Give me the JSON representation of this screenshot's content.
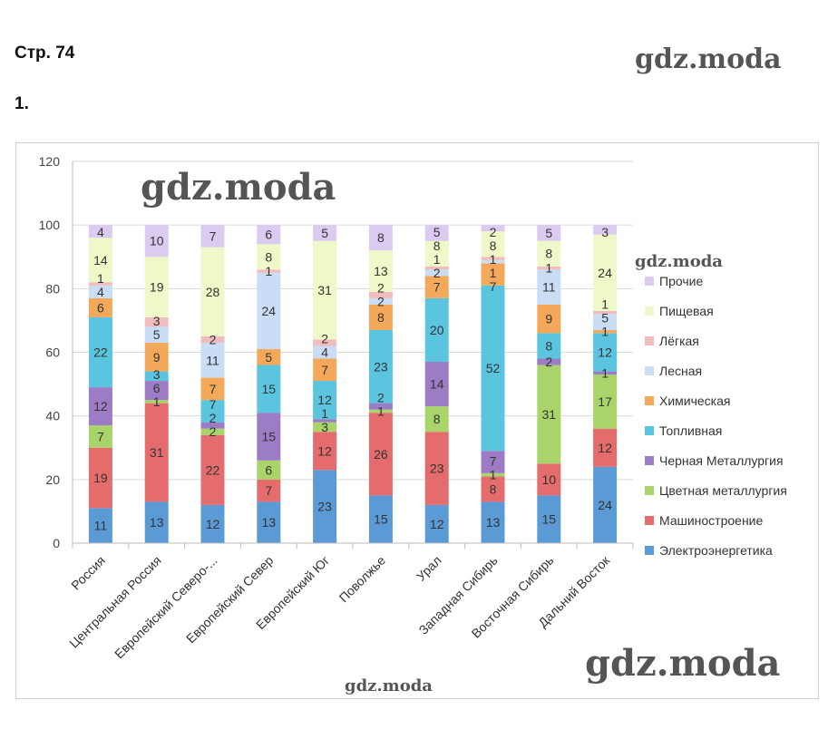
{
  "page": {
    "title": "Стр. 74",
    "task": "1.",
    "watermark": "gdz.moda"
  },
  "chart_data": {
    "type": "bar",
    "stacked": true,
    "categories": [
      "Россия",
      "Центральная Россия",
      "Европейский Северо-...",
      "Европейский Север",
      "Европейский Юг",
      "Поволжье",
      "Урал",
      "Западная Сибирь",
      "Восточная Сибирь",
      "Дальний Восток"
    ],
    "ylim": [
      0,
      120
    ],
    "yticks": [
      0,
      20,
      40,
      60,
      80,
      100,
      120
    ],
    "grid": true,
    "legend": "right",
    "series": [
      {
        "name": "Электроэнергетика",
        "color": "#5b9bd5",
        "values": [
          11,
          13,
          12,
          13,
          23,
          15,
          12,
          13,
          15,
          24
        ]
      },
      {
        "name": "Машиностроение",
        "color": "#e46c6c",
        "values": [
          19,
          31,
          22,
          7,
          12,
          26,
          23,
          8,
          10,
          12
        ]
      },
      {
        "name": "Цветная металлургия",
        "color": "#a9d46a",
        "values": [
          7,
          1,
          2,
          6,
          3,
          1,
          8,
          1,
          31,
          17
        ]
      },
      {
        "name": "Черная Металлургия",
        "color": "#9b7cc5",
        "values": [
          12,
          6,
          2,
          15,
          1,
          2,
          14,
          7,
          2,
          1
        ]
      },
      {
        "name": "Топливная",
        "color": "#5bc5e0",
        "values": [
          22,
          3,
          7,
          15,
          12,
          23,
          20,
          52,
          8,
          12
        ]
      },
      {
        "name": "Химическая",
        "color": "#f4a95a",
        "values": [
          6,
          9,
          7,
          5,
          7,
          8,
          7,
          7,
          9,
          1
        ]
      },
      {
        "name": "Лесная",
        "color": "#c9ddf5",
        "values": [
          4,
          5,
          11,
          24,
          4,
          2,
          2,
          1,
          11,
          5
        ]
      },
      {
        "name": "Лёгкая",
        "color": "#f0bcbc",
        "values": [
          1,
          3,
          2,
          1,
          2,
          2,
          1,
          1,
          1,
          1
        ]
      },
      {
        "name": "Пищевая",
        "color": "#eef8c8",
        "values": [
          14,
          19,
          28,
          8,
          31,
          13,
          8,
          8,
          8,
          24
        ]
      },
      {
        "name": "Прочие",
        "color": "#dccbf0",
        "values": [
          4,
          10,
          7,
          6,
          5,
          8,
          5,
          2,
          5,
          3
        ]
      }
    ]
  }
}
